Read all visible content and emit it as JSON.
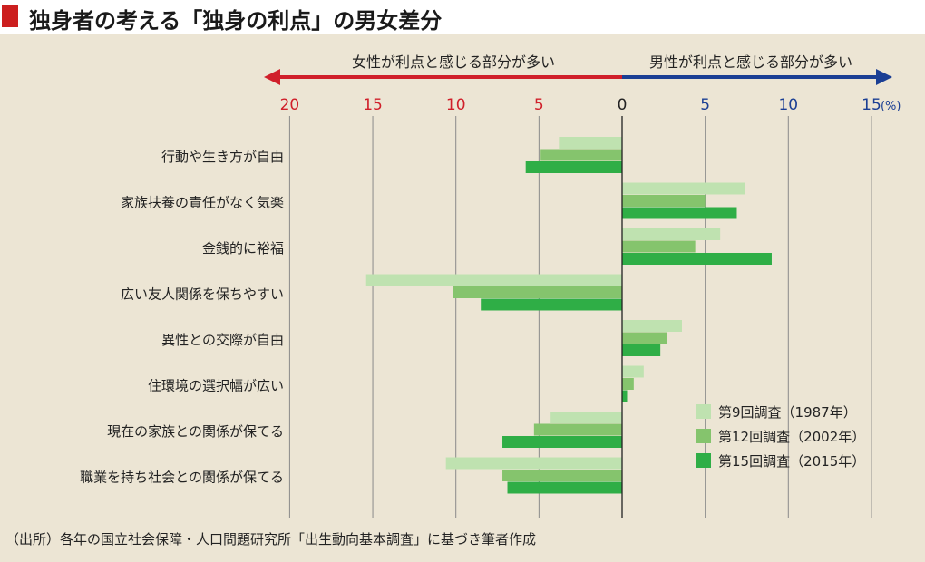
{
  "title": "独身者の考える「独身の利点」の男女差分",
  "source": "（出所）各年の国立社会保障・人口問題研究所「出生動向基本調査」に基づき筆者作成",
  "colors": {
    "female": "#d01f2a",
    "male": "#1b3f94",
    "series": [
      "#bfe2b0",
      "#85c46d",
      "#2fae46"
    ]
  },
  "chart_data": {
    "type": "bar",
    "orientation": "horizontal",
    "female_label": "女性が利点と感じる部分が多い",
    "male_label": "男性が利点と感じる部分が多い",
    "unit_label": "(%)",
    "female_ticks": [
      "20",
      "15",
      "10",
      "5"
    ],
    "zero_tick": "0",
    "male_ticks": [
      "5",
      "10",
      "15"
    ],
    "xlim": [
      -20,
      15
    ],
    "categories": [
      "行動や生き方が自由",
      "家族扶養の責任がなく気楽",
      "金銭的に裕福",
      "広い友人関係を保ちやすい",
      "異性との交際が自由",
      "住環境の選択幅が広い",
      "現在の家族との関係が保てる",
      "職業を持ち社会との関係が保てる"
    ],
    "series": [
      {
        "name": "第9回調査（1987年）",
        "values": [
          -3.8,
          7.4,
          5.9,
          -15.4,
          3.6,
          1.3,
          -4.3,
          -10.6
        ]
      },
      {
        "name": "第12回調査（2002年）",
        "values": [
          -4.9,
          5.0,
          4.4,
          -10.2,
          2.7,
          0.7,
          -5.3,
          -7.2
        ]
      },
      {
        "name": "第15回調査（2015年）",
        "values": [
          -5.8,
          6.9,
          9.0,
          -8.5,
          2.3,
          0.3,
          -7.2,
          -6.9
        ]
      }
    ],
    "legend_position": "bottom-right",
    "grid": true
  }
}
